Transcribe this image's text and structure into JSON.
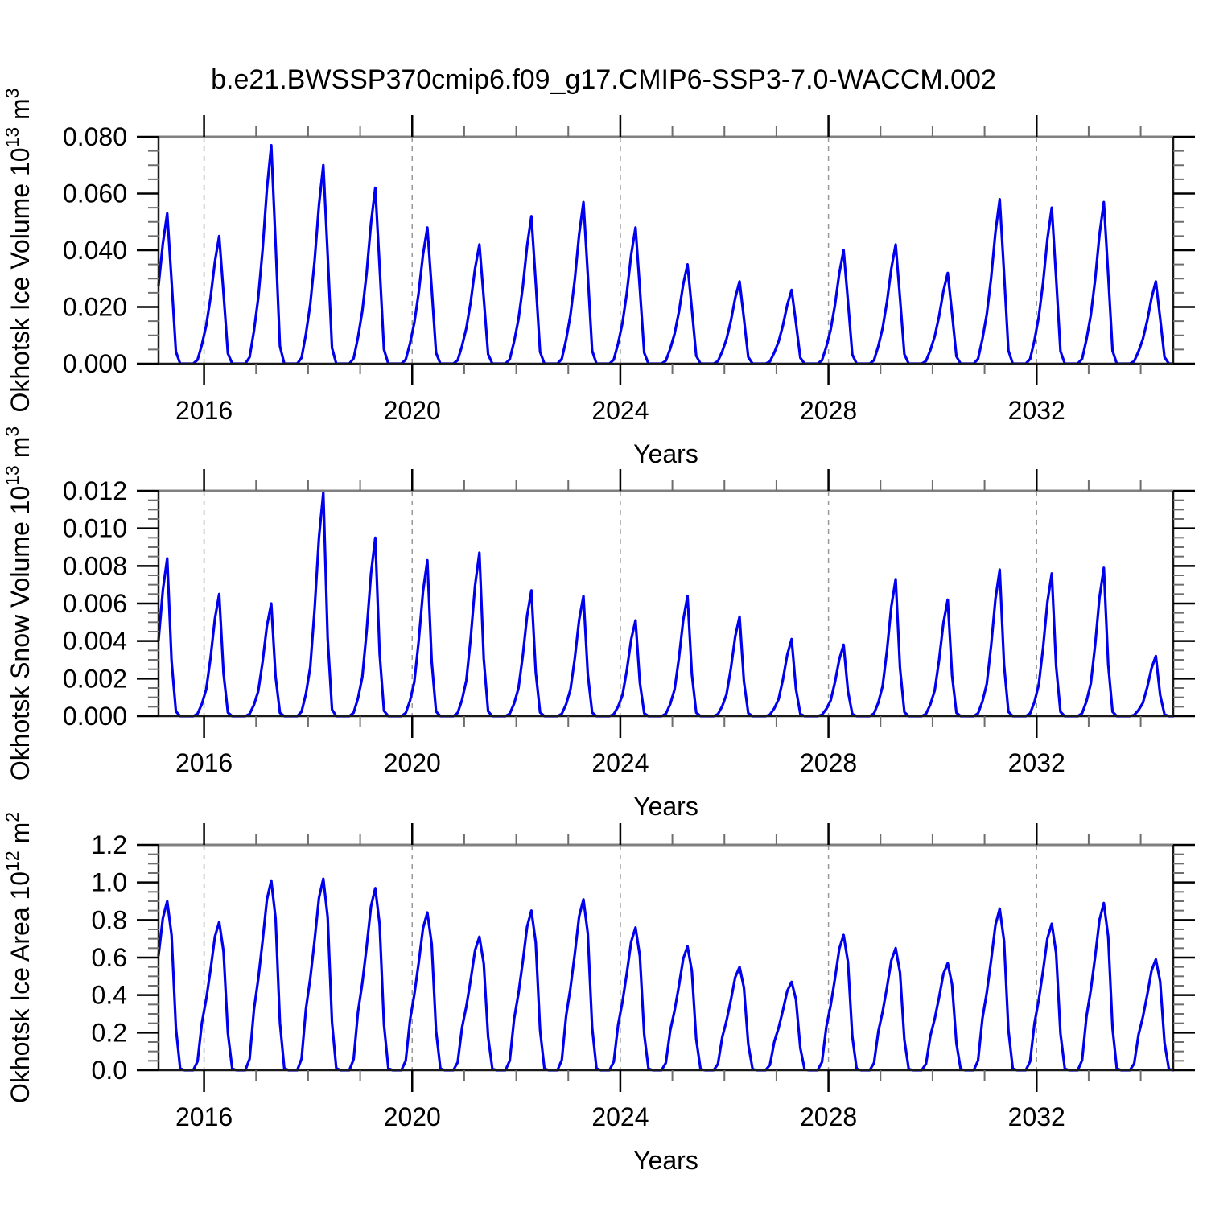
{
  "title": "b.e21.BWSSP370cmip6.f09_g17.CMIP6-SSP3-7.0-WACCM.002",
  "colors": {
    "line": "#0000EE",
    "grid": "#999999",
    "box": "#1a1a1a",
    "box_top": "#808080",
    "major_tick": "#000000",
    "minor_tick": "#6e6e6e",
    "text": "#000000",
    "background": "#ffffff"
  },
  "chart_data": [
    {
      "id": "ice-volume",
      "type": "line",
      "ylabel": "Okhotsk Ice Volume 10^13 m^3",
      "ylabel_rich": [
        [
          "Okhotsk Ice Volume 10",
          false
        ],
        [
          "13",
          true
        ],
        [
          " m",
          false
        ],
        [
          "3",
          true
        ]
      ],
      "xlabel": "Years",
      "xlim": [
        2015.125,
        2034.625
      ],
      "ylim": [
        0,
        0.08
      ],
      "yticks": [
        {
          "value": 0.0,
          "label": "0.000"
        },
        {
          "value": 0.02,
          "label": "0.020"
        },
        {
          "value": 0.04,
          "label": "0.040"
        },
        {
          "value": 0.06,
          "label": "0.060"
        },
        {
          "value": 0.08,
          "label": "0.080"
        }
      ],
      "y_minor_step": 0.005,
      "y_minor_per_major": 4,
      "x_major_ticks": [
        2016,
        2020,
        2024,
        2028,
        2032
      ],
      "x_minor_step": 1,
      "grid_dashed_at_x_major": true,
      "legend": "none",
      "annual_peaks": [
        {
          "year": 2015,
          "value": 0.053
        },
        {
          "year": 2016,
          "value": 0.045
        },
        {
          "year": 2017,
          "value": 0.077
        },
        {
          "year": 2018,
          "value": 0.07
        },
        {
          "year": 2019,
          "value": 0.062
        },
        {
          "year": 2020,
          "value": 0.048
        },
        {
          "year": 2021,
          "value": 0.042
        },
        {
          "year": 2022,
          "value": 0.052
        },
        {
          "year": 2023,
          "value": 0.057
        },
        {
          "year": 2024,
          "value": 0.048
        },
        {
          "year": 2025,
          "value": 0.035
        },
        {
          "year": 2026,
          "value": 0.029
        },
        {
          "year": 2027,
          "value": 0.026
        },
        {
          "year": 2028,
          "value": 0.04
        },
        {
          "year": 2029,
          "value": 0.042
        },
        {
          "year": 2030,
          "value": 0.032
        },
        {
          "year": 2031,
          "value": 0.058
        },
        {
          "year": 2032,
          "value": 0.055
        },
        {
          "year": 2033,
          "value": 0.057
        },
        {
          "year": 2034,
          "value": 0.029
        }
      ],
      "seasonal_profile": [
        0.3,
        0.52,
        0.8,
        1.0,
        0.55,
        0.08,
        0.0,
        0.0,
        0.0,
        0.0,
        0.03,
        0.15
      ],
      "peak_month": "April",
      "series_start": "Feb 2015",
      "series_end": "Aug 2034"
    },
    {
      "id": "snow-volume",
      "type": "line",
      "ylabel": "Okhotsk Snow Volume 10^13 m^3",
      "ylabel_rich": [
        [
          "Okhotsk Snow Volume 10",
          false
        ],
        [
          "13",
          true
        ],
        [
          " m",
          false
        ],
        [
          "3",
          true
        ]
      ],
      "xlabel": "Years",
      "xlim": [
        2015.125,
        2034.625
      ],
      "ylim": [
        0,
        0.012
      ],
      "yticks": [
        {
          "value": 0.0,
          "label": "0.000"
        },
        {
          "value": 0.002,
          "label": "0.002"
        },
        {
          "value": 0.004,
          "label": "0.004"
        },
        {
          "value": 0.006,
          "label": "0.006"
        },
        {
          "value": 0.008,
          "label": "0.008"
        },
        {
          "value": 0.01,
          "label": "0.010"
        },
        {
          "value": 0.012,
          "label": "0.012"
        }
      ],
      "y_minor_step": 0.0005,
      "y_minor_per_major": 4,
      "x_major_ticks": [
        2016,
        2020,
        2024,
        2028,
        2032
      ],
      "x_minor_step": 1,
      "grid_dashed_at_x_major": true,
      "legend": "none",
      "annual_peaks": [
        {
          "year": 2015,
          "value": 0.0084
        },
        {
          "year": 2016,
          "value": 0.0065
        },
        {
          "year": 2017,
          "value": 0.006
        },
        {
          "year": 2018,
          "value": 0.0119
        },
        {
          "year": 2019,
          "value": 0.0095
        },
        {
          "year": 2020,
          "value": 0.0083
        },
        {
          "year": 2021,
          "value": 0.0087
        },
        {
          "year": 2022,
          "value": 0.0067
        },
        {
          "year": 2023,
          "value": 0.0064
        },
        {
          "year": 2024,
          "value": 0.0051
        },
        {
          "year": 2025,
          "value": 0.0064
        },
        {
          "year": 2026,
          "value": 0.0053
        },
        {
          "year": 2027,
          "value": 0.0041
        },
        {
          "year": 2028,
          "value": 0.0038
        },
        {
          "year": 2029,
          "value": 0.0073
        },
        {
          "year": 2030,
          "value": 0.0062
        },
        {
          "year": 2031,
          "value": 0.0078
        },
        {
          "year": 2032,
          "value": 0.0076
        },
        {
          "year": 2033,
          "value": 0.0079
        },
        {
          "year": 2034,
          "value": 0.0032
        }
      ],
      "seasonal_profile": [
        0.22,
        0.48,
        0.8,
        1.0,
        0.35,
        0.03,
        0.0,
        0.0,
        0.0,
        0.0,
        0.02,
        0.1
      ],
      "peak_month": "April",
      "series_start": "Feb 2015",
      "series_end": "Aug 2034"
    },
    {
      "id": "ice-area",
      "type": "line",
      "ylabel": "Okhotsk Ice Area 10^12 m^2",
      "ylabel_rich": [
        [
          "Okhotsk Ice Area 10",
          false
        ],
        [
          "12",
          true
        ],
        [
          " m",
          false
        ],
        [
          "2",
          true
        ]
      ],
      "xlabel": "Years",
      "xlim": [
        2015.125,
        2034.625
      ],
      "ylim": [
        0,
        1.2
      ],
      "yticks": [
        {
          "value": 0.0,
          "label": "0.0"
        },
        {
          "value": 0.2,
          "label": "0.2"
        },
        {
          "value": 0.4,
          "label": "0.4"
        },
        {
          "value": 0.6,
          "label": "0.6"
        },
        {
          "value": 0.8,
          "label": "0.8"
        },
        {
          "value": 1.0,
          "label": "1.0"
        },
        {
          "value": 1.2,
          "label": "1.2"
        }
      ],
      "y_minor_step": 0.05,
      "y_minor_per_major": 4,
      "x_major_ticks": [
        2016,
        2020,
        2024,
        2028,
        2032
      ],
      "x_minor_step": 1,
      "grid_dashed_at_x_major": true,
      "legend": "none",
      "annual_peaks": [
        {
          "year": 2015,
          "value": 0.9
        },
        {
          "year": 2016,
          "value": 0.79
        },
        {
          "year": 2017,
          "value": 1.01
        },
        {
          "year": 2018,
          "value": 1.02
        },
        {
          "year": 2019,
          "value": 0.97
        },
        {
          "year": 2020,
          "value": 0.84
        },
        {
          "year": 2021,
          "value": 0.71
        },
        {
          "year": 2022,
          "value": 0.85
        },
        {
          "year": 2023,
          "value": 0.91
        },
        {
          "year": 2024,
          "value": 0.76
        },
        {
          "year": 2025,
          "value": 0.66
        },
        {
          "year": 2026,
          "value": 0.55
        },
        {
          "year": 2027,
          "value": 0.47
        },
        {
          "year": 2028,
          "value": 0.72
        },
        {
          "year": 2029,
          "value": 0.65
        },
        {
          "year": 2030,
          "value": 0.57
        },
        {
          "year": 2031,
          "value": 0.86
        },
        {
          "year": 2032,
          "value": 0.78
        },
        {
          "year": 2033,
          "value": 0.89
        },
        {
          "year": 2034,
          "value": 0.59
        }
      ],
      "seasonal_profile": [
        0.48,
        0.68,
        0.9,
        1.0,
        0.8,
        0.25,
        0.01,
        0.0,
        0.0,
        0.0,
        0.06,
        0.32
      ],
      "peak_month": "April",
      "series_start": "Feb 2015",
      "series_end": "Aug 2034"
    }
  ]
}
